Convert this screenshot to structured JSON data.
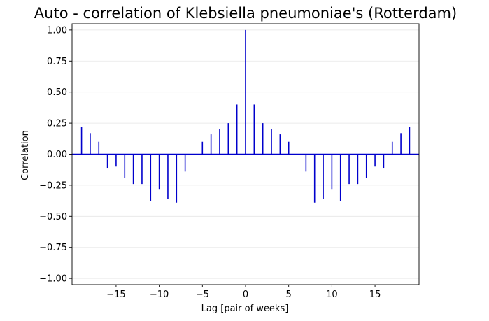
{
  "chart_data": {
    "type": "bar",
    "title": "Auto - correlation of Klebsiella pneumoniae's (Rotterdam)",
    "xlabel": "Lag [pair of weeks]",
    "ylabel": "Correlation",
    "x": [
      -19,
      -18,
      -17,
      -16,
      -15,
      -14,
      -13,
      -12,
      -11,
      -10,
      -9,
      -8,
      -7,
      -6,
      -5,
      -4,
      -3,
      -2,
      -1,
      0,
      1,
      2,
      3,
      4,
      5,
      6,
      7,
      8,
      9,
      10,
      11,
      12,
      13,
      14,
      15,
      16,
      17,
      18,
      19
    ],
    "values": [
      0.22,
      0.17,
      0.1,
      -0.11,
      -0.1,
      -0.19,
      -0.24,
      -0.24,
      -0.38,
      -0.28,
      -0.36,
      -0.39,
      -0.14,
      0.0,
      0.1,
      0.16,
      0.2,
      0.25,
      0.4,
      1.0,
      0.4,
      0.25,
      0.2,
      0.16,
      0.1,
      0.0,
      -0.14,
      -0.39,
      -0.36,
      -0.28,
      -0.38,
      -0.24,
      -0.24,
      -0.19,
      -0.1,
      -0.11,
      0.1,
      0.17,
      0.22
    ],
    "xlim": [
      -20.1,
      20.1
    ],
    "ylim": [
      -1.05,
      1.05
    ],
    "x_ticks": [
      -15,
      -10,
      -5,
      0,
      5,
      10,
      15
    ],
    "x_tick_labels": [
      "−15",
      "−10",
      "−5",
      "0",
      "5",
      "10",
      "15"
    ],
    "y_ticks": [
      1.0,
      0.75,
      0.5,
      0.25,
      0.0,
      -0.25,
      -0.5,
      -0.75,
      -1.0
    ],
    "y_tick_labels": [
      "1.00",
      "0.75",
      "0.50",
      "0.25",
      "0.00",
      "−0.25",
      "−0.50",
      "−0.75",
      "−1.00"
    ],
    "grid": "horizontal",
    "legend": "none",
    "colors": {
      "stem": "#0000cc",
      "baseline": "#0000cc"
    }
  }
}
